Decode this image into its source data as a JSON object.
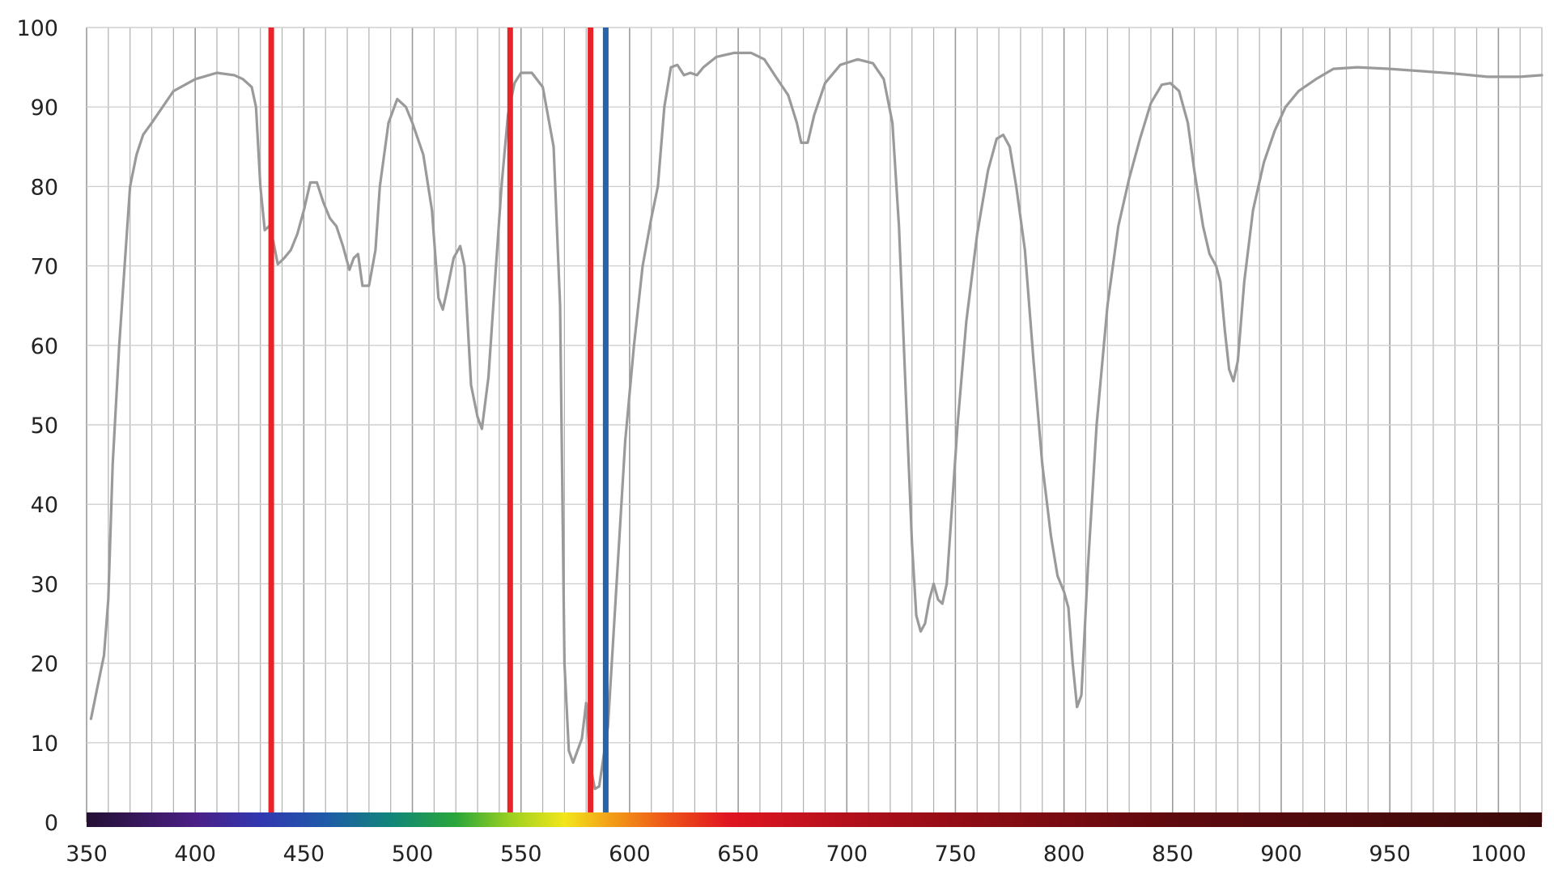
{
  "chart_data": {
    "type": "line",
    "title": "",
    "xlabel": "",
    "ylabel": "",
    "xlim": [
      350,
      1020
    ],
    "ylim": [
      0,
      100
    ],
    "grid": true,
    "x_major_ticks": [
      350,
      400,
      450,
      500,
      550,
      600,
      650,
      700,
      750,
      800,
      850,
      900,
      950,
      1000
    ],
    "x_grid_step": 10,
    "y_ticks": [
      0,
      10,
      20,
      30,
      40,
      50,
      60,
      70,
      80,
      90,
      100
    ],
    "x_tick_labels": [
      "350",
      "400",
      "450",
      "500",
      "550",
      "600",
      "650",
      "700",
      "750",
      "800",
      "850",
      "900",
      "950",
      "1000"
    ],
    "y_tick_labels": [
      "0",
      "10",
      "20",
      "30",
      "40",
      "50",
      "60",
      "70",
      "80",
      "90",
      "100"
    ],
    "series": [
      {
        "color": "#9a9a9a",
        "points": [
          [
            352,
            13
          ],
          [
            355,
            17
          ],
          [
            358,
            21
          ],
          [
            360,
            28
          ],
          [
            362,
            45
          ],
          [
            365,
            60
          ],
          [
            368,
            72
          ],
          [
            370,
            80
          ],
          [
            373,
            84
          ],
          [
            376,
            86.5
          ],
          [
            380,
            88
          ],
          [
            385,
            90
          ],
          [
            390,
            92
          ],
          [
            400,
            93.5
          ],
          [
            410,
            94.3
          ],
          [
            418,
            94
          ],
          [
            422,
            93.5
          ],
          [
            426,
            92.5
          ],
          [
            428,
            90
          ],
          [
            430,
            80
          ],
          [
            432,
            74.5
          ],
          [
            434,
            75
          ],
          [
            436,
            73
          ],
          [
            438,
            70.2
          ],
          [
            441,
            71
          ],
          [
            444,
            72
          ],
          [
            447,
            74
          ],
          [
            450,
            77
          ],
          [
            453,
            80.5
          ],
          [
            456,
            80.5
          ],
          [
            459,
            78
          ],
          [
            462,
            76
          ],
          [
            465,
            75
          ],
          [
            468,
            72.5
          ],
          [
            471,
            69.5
          ],
          [
            473,
            71
          ],
          [
            475,
            71.5
          ],
          [
            477,
            67.5
          ],
          [
            480,
            67.5
          ],
          [
            483,
            72
          ],
          [
            485,
            80
          ],
          [
            489,
            88
          ],
          [
            493,
            91
          ],
          [
            497,
            90
          ],
          [
            500,
            88
          ],
          [
            505,
            84
          ],
          [
            509,
            77
          ],
          [
            512,
            66
          ],
          [
            514,
            64.5
          ],
          [
            516,
            67
          ],
          [
            519,
            71
          ],
          [
            522,
            72.5
          ],
          [
            524,
            70
          ],
          [
            527,
            55
          ],
          [
            530,
            51
          ],
          [
            532,
            49.5
          ],
          [
            535,
            56
          ],
          [
            538,
            68
          ],
          [
            541,
            80
          ],
          [
            544,
            89
          ],
          [
            547,
            93
          ],
          [
            550,
            94.3
          ],
          [
            555,
            94.3
          ],
          [
            560,
            92.5
          ],
          [
            565,
            85
          ],
          [
            568,
            65
          ],
          [
            570,
            20
          ],
          [
            572,
            9
          ],
          [
            574,
            7.5
          ],
          [
            576,
            9
          ],
          [
            578,
            10.5
          ],
          [
            580,
            15
          ],
          [
            582,
            7
          ],
          [
            584,
            4.2
          ],
          [
            586,
            4.5
          ],
          [
            590,
            12
          ],
          [
            594,
            30
          ],
          [
            598,
            48
          ],
          [
            602,
            60
          ],
          [
            606,
            70
          ],
          [
            610,
            76
          ],
          [
            613,
            80
          ],
          [
            616,
            90
          ],
          [
            619,
            95
          ],
          [
            622,
            95.3
          ],
          [
            625,
            94
          ],
          [
            628,
            94.3
          ],
          [
            631,
            94
          ],
          [
            634,
            95
          ],
          [
            640,
            96.3
          ],
          [
            648,
            96.8
          ],
          [
            656,
            96.8
          ],
          [
            662,
            96
          ],
          [
            668,
            93.5
          ],
          [
            673,
            91.5
          ],
          [
            677,
            88
          ],
          [
            679,
            85.5
          ],
          [
            682,
            85.5
          ],
          [
            685,
            89
          ],
          [
            690,
            93
          ],
          [
            697,
            95.3
          ],
          [
            705,
            96
          ],
          [
            712,
            95.5
          ],
          [
            717,
            93.5
          ],
          [
            721,
            88
          ],
          [
            724,
            75
          ],
          [
            727,
            55
          ],
          [
            730,
            35
          ],
          [
            732,
            26
          ],
          [
            734,
            24
          ],
          [
            736,
            25
          ],
          [
            738,
            28
          ],
          [
            740,
            30
          ],
          [
            742,
            28
          ],
          [
            744,
            27.5
          ],
          [
            746,
            30
          ],
          [
            748,
            38
          ],
          [
            751,
            50
          ],
          [
            755,
            63
          ],
          [
            760,
            74
          ],
          [
            765,
            82
          ],
          [
            769,
            86
          ],
          [
            772,
            86.5
          ],
          [
            775,
            85
          ],
          [
            778,
            80
          ],
          [
            782,
            72
          ],
          [
            786,
            58
          ],
          [
            790,
            45
          ],
          [
            794,
            36
          ],
          [
            797,
            31
          ],
          [
            800,
            29
          ],
          [
            802,
            27
          ],
          [
            804,
            20
          ],
          [
            806,
            14.5
          ],
          [
            808,
            16
          ],
          [
            811,
            32
          ],
          [
            815,
            50
          ],
          [
            820,
            65
          ],
          [
            825,
            75
          ],
          [
            830,
            81
          ],
          [
            835,
            86
          ],
          [
            840,
            90.5
          ],
          [
            845,
            92.8
          ],
          [
            849,
            93
          ],
          [
            853,
            92
          ],
          [
            857,
            88
          ],
          [
            860,
            82
          ],
          [
            864,
            75
          ],
          [
            867,
            71.5
          ],
          [
            870,
            70
          ],
          [
            872,
            68
          ],
          [
            874,
            62
          ],
          [
            876,
            57
          ],
          [
            878,
            55.5
          ],
          [
            880,
            58
          ],
          [
            883,
            68
          ],
          [
            887,
            77
          ],
          [
            892,
            83
          ],
          [
            897,
            87
          ],
          [
            902,
            90
          ],
          [
            908,
            92
          ],
          [
            916,
            93.5
          ],
          [
            924,
            94.8
          ],
          [
            935,
            95
          ],
          [
            950,
            94.8
          ],
          [
            965,
            94.5
          ],
          [
            980,
            94.2
          ],
          [
            995,
            93.8
          ],
          [
            1010,
            93.8
          ],
          [
            1020,
            94
          ]
        ]
      }
    ],
    "markers": [
      {
        "x": 435,
        "color": "#e8232a"
      },
      {
        "x": 545,
        "color": "#e8232a"
      },
      {
        "x": 582,
        "color": "#e8232a"
      },
      {
        "x": 589,
        "color": "#2a64a8"
      }
    ],
    "spectrum_bar": {
      "x_start": 350,
      "x_end": 1020,
      "stops": [
        {
          "x": 350,
          "color": "#241034"
        },
        {
          "x": 400,
          "color": "#4b1f86"
        },
        {
          "x": 430,
          "color": "#3137b0"
        },
        {
          "x": 460,
          "color": "#1f5aa8"
        },
        {
          "x": 490,
          "color": "#11857a"
        },
        {
          "x": 520,
          "color": "#2aa63a"
        },
        {
          "x": 545,
          "color": "#9bd020"
        },
        {
          "x": 570,
          "color": "#f2e61a"
        },
        {
          "x": 590,
          "color": "#f3a218"
        },
        {
          "x": 615,
          "color": "#ee5a18"
        },
        {
          "x": 645,
          "color": "#e01520"
        },
        {
          "x": 700,
          "color": "#b3101c"
        },
        {
          "x": 760,
          "color": "#8c0c14"
        },
        {
          "x": 850,
          "color": "#5e0a0e"
        },
        {
          "x": 1020,
          "color": "#3c0a0a"
        }
      ]
    }
  }
}
